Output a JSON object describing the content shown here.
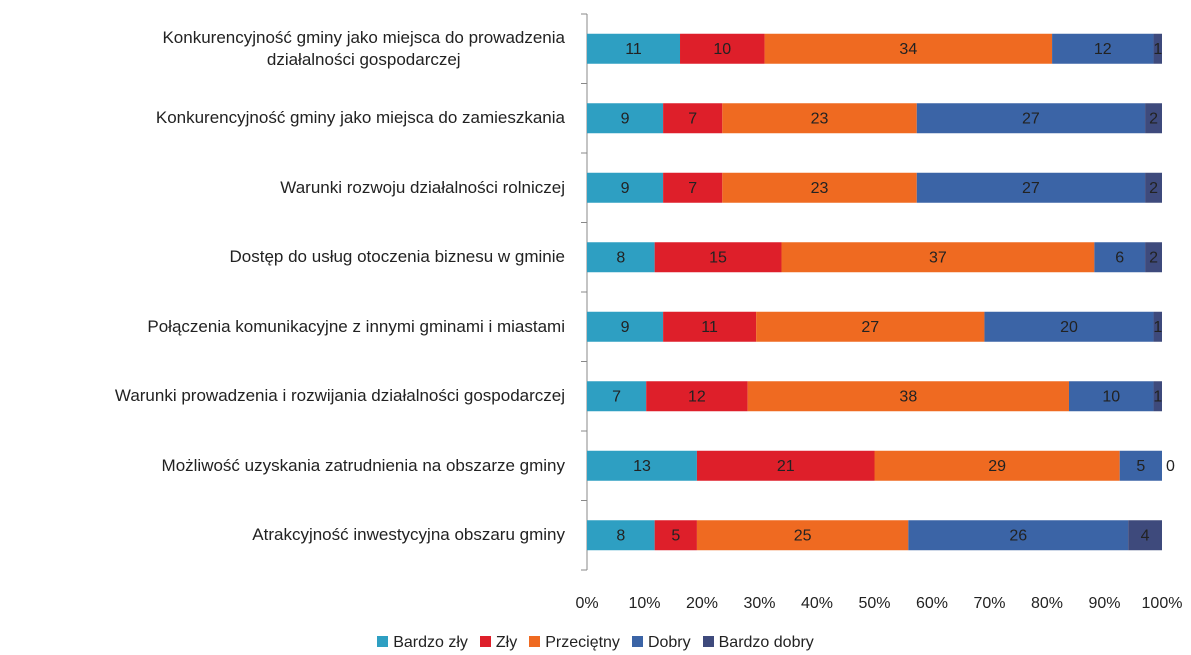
{
  "chart_data": {
    "type": "bar",
    "orientation": "horizontal",
    "stack": "percent",
    "categories": [
      "Konkurencyjność gminy jako miejsca do prowadzenia\ndziałalności gospodarczej",
      "Konkurencyjność gminy jako miejsca do zamieszkania",
      "Warunki rozwoju działalności rolniczej",
      "Dostęp do usług otoczenia biznesu w gminie",
      "Połączenia komunikacyjne z innymi gminami i miastami",
      "Warunki prowadzenia i rozwijania działalności gospodarczej",
      "Możliwość uzyskania zatrudnienia na obszarze gminy",
      "Atrakcyjność inwestycyjna obszaru gminy"
    ],
    "series": [
      {
        "name": "Bardzo zły",
        "color": "#2e9fc2",
        "values": [
          11,
          9,
          9,
          8,
          9,
          7,
          13,
          8
        ]
      },
      {
        "name": "Zły",
        "color": "#de1f2a",
        "values": [
          10,
          7,
          7,
          15,
          11,
          12,
          21,
          5
        ]
      },
      {
        "name": "Przeciętny",
        "color": "#ef6a21",
        "values": [
          34,
          23,
          23,
          37,
          27,
          38,
          29,
          25
        ]
      },
      {
        "name": "Dobry",
        "color": "#3b64a6",
        "values": [
          12,
          27,
          27,
          6,
          20,
          10,
          5,
          26
        ]
      },
      {
        "name": "Bardzo dobry",
        "color": "#3e4a7c",
        "values": [
          1,
          2,
          2,
          2,
          1,
          1,
          0,
          4
        ]
      }
    ],
    "xlim": [
      0,
      100
    ],
    "xticks": [
      {
        "value": 0,
        "label": "0%"
      },
      {
        "value": 10,
        "label": "10%"
      },
      {
        "value": 20,
        "label": "20%"
      },
      {
        "value": 30,
        "label": "30%"
      },
      {
        "value": 40,
        "label": "40%"
      },
      {
        "value": 50,
        "label": "50%"
      },
      {
        "value": 60,
        "label": "60%"
      },
      {
        "value": 70,
        "label": "70%"
      },
      {
        "value": 80,
        "label": "80%"
      },
      {
        "value": 90,
        "label": "90%"
      },
      {
        "value": 100,
        "label": "100%"
      }
    ],
    "legend": "bottom"
  }
}
